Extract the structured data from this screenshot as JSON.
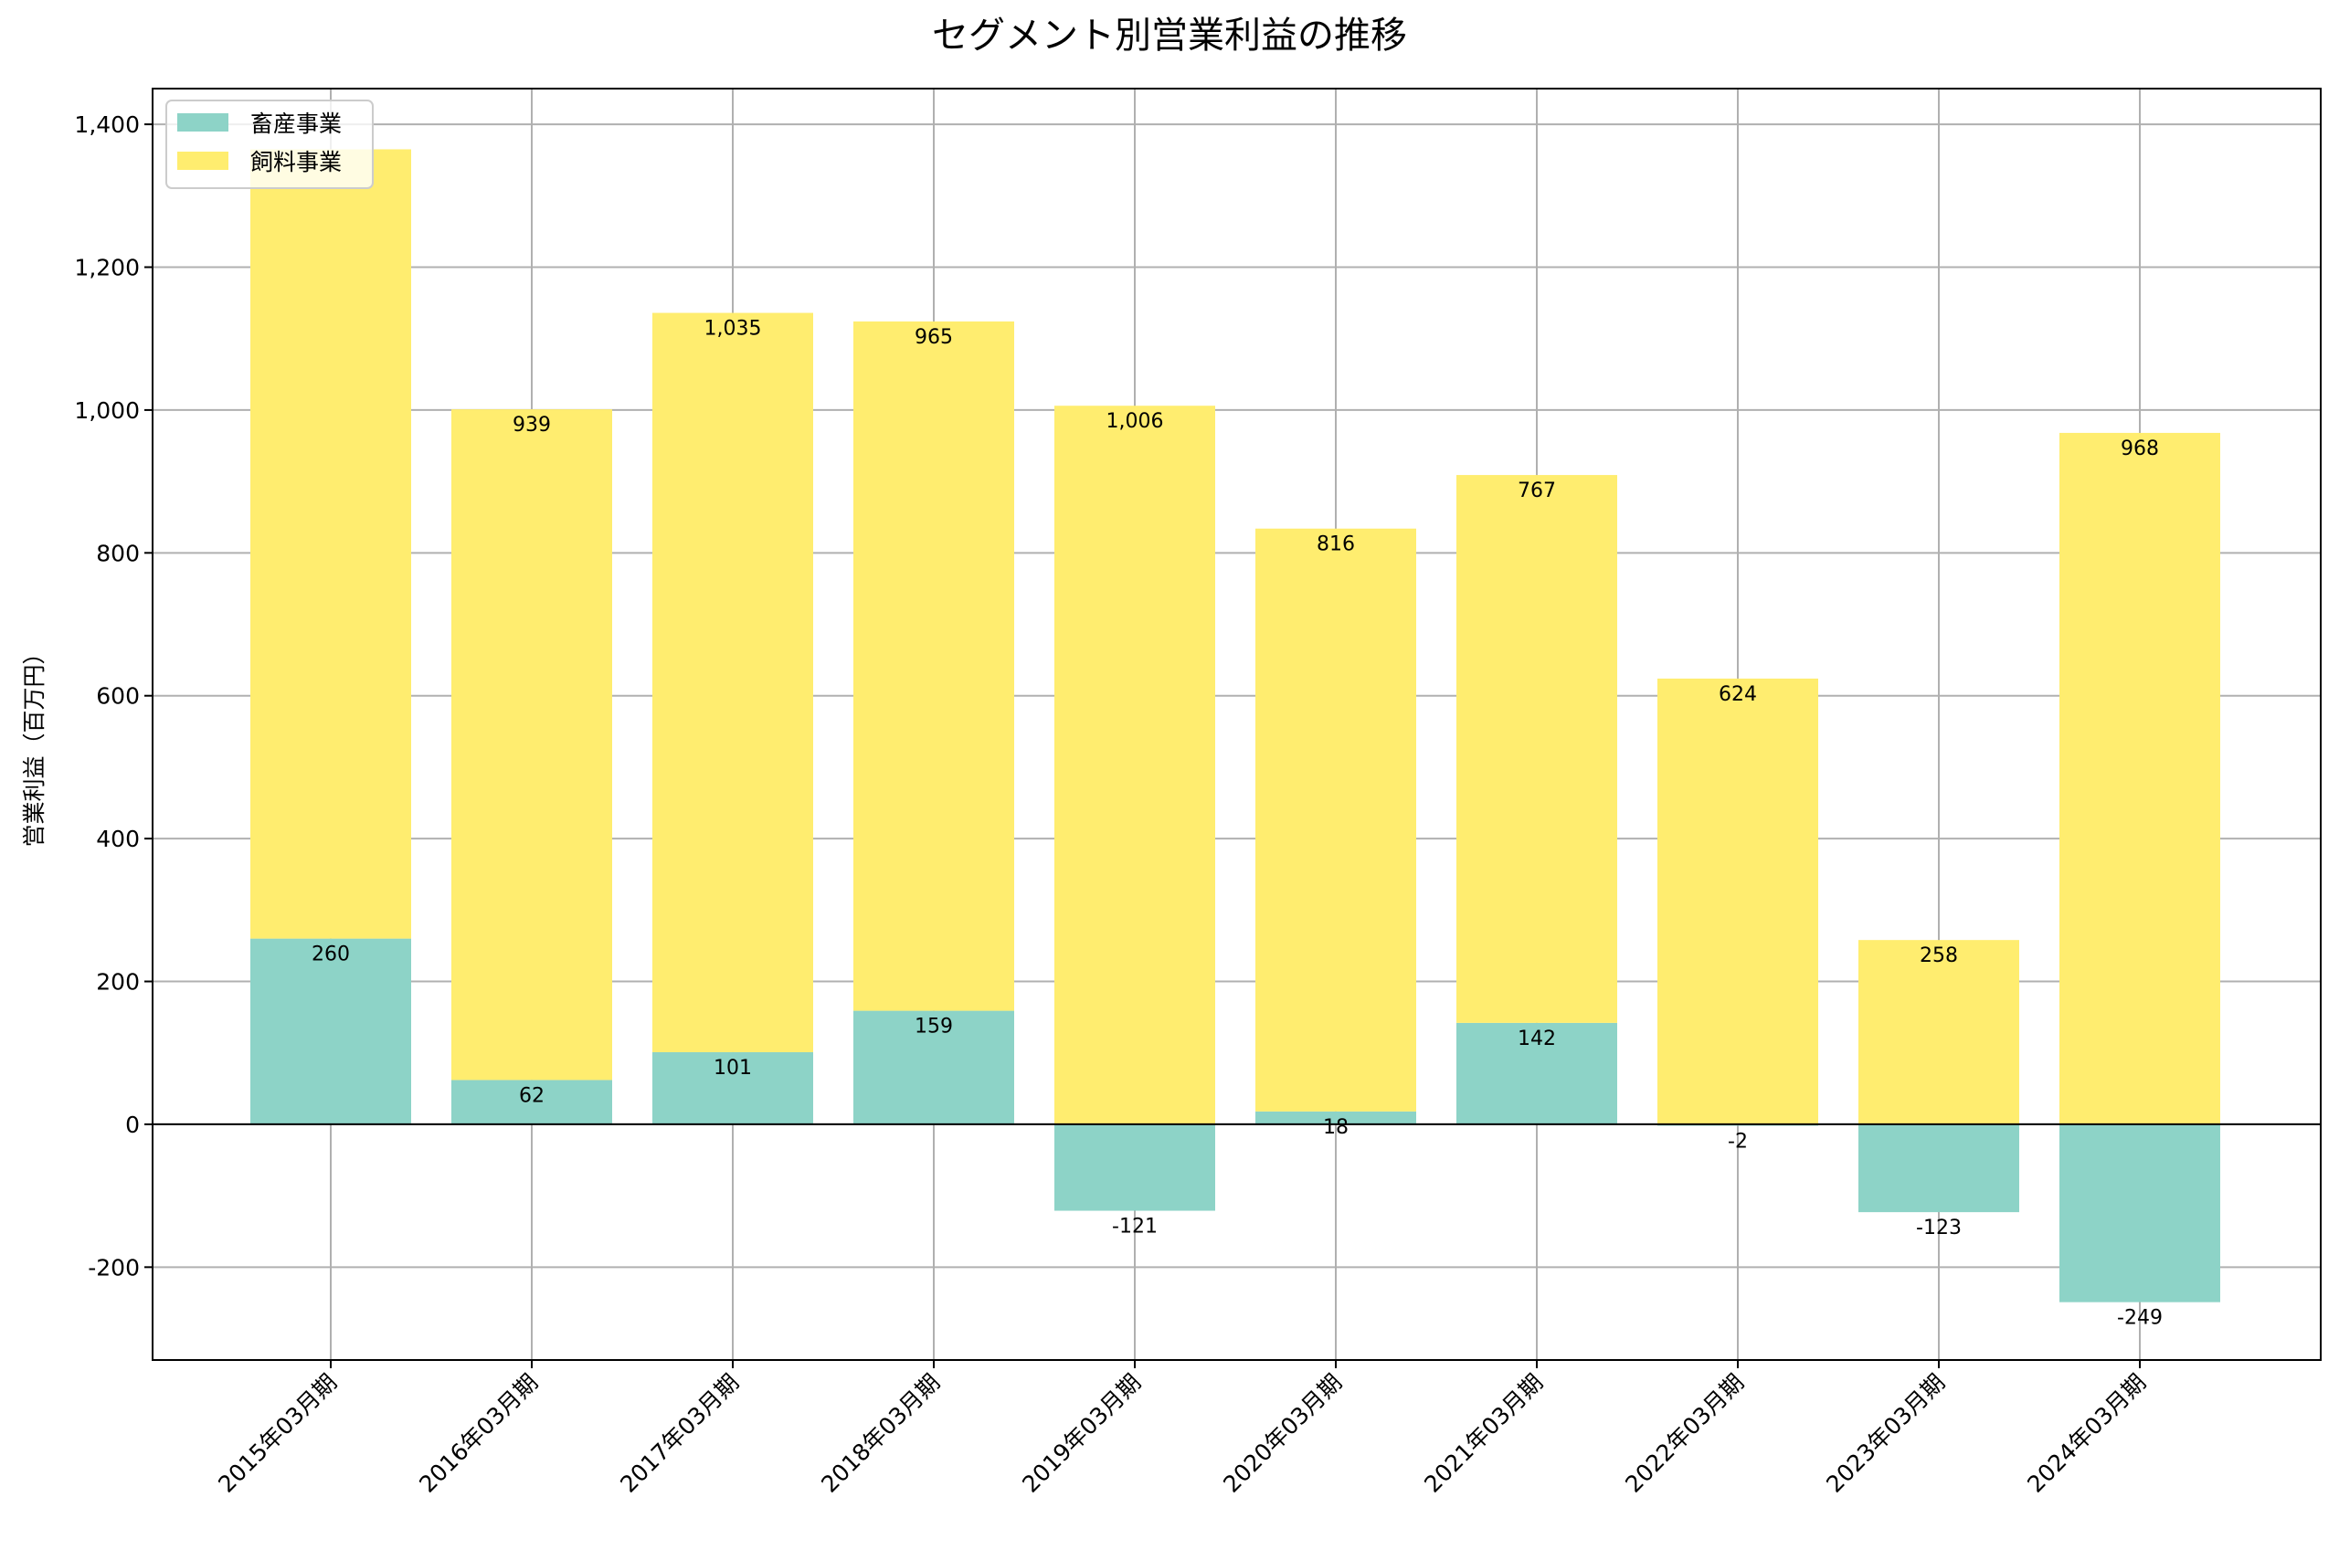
{
  "chart_data": {
    "type": "bar",
    "stacked": true,
    "title": "セグメント別営業利益の推移",
    "xlabel": "",
    "ylabel": "営業利益（百万円）",
    "ylim": [
      -330,
      1450
    ],
    "yticks": [
      -200,
      0,
      200,
      400,
      600,
      800,
      1000,
      1200,
      1400
    ],
    "ytick_labels": [
      "-200",
      "0",
      "200",
      "400",
      "600",
      "800",
      "1,000",
      "1,200",
      "1,400"
    ],
    "grid": true,
    "legend_position": "top-left",
    "categories": [
      "2015年03月期",
      "2016年03月期",
      "2017年03月期",
      "2018年03月期",
      "2019年03月期",
      "2020年03月期",
      "2021年03月期",
      "2022年03月期",
      "2023年03月期",
      "2024年03月期"
    ],
    "series": [
      {
        "name": "畜産事業",
        "color": "#8dd3c7",
        "values": [
          260,
          62,
          101,
          159,
          -121,
          18,
          142,
          -2,
          -123,
          -249
        ],
        "labels": [
          "260",
          "62",
          "101",
          "159",
          "-121",
          "18",
          "142",
          "-2",
          "-123",
          "-249"
        ]
      },
      {
        "name": "飼料事業",
        "color": "#ffed6f",
        "values": [
          1105,
          939,
          1035,
          965,
          1006,
          816,
          767,
          624,
          258,
          968
        ],
        "labels": [
          "",
          "939",
          "1,035",
          "965",
          "1,006",
          "816",
          "767",
          "624",
          "258",
          "968"
        ]
      }
    ]
  }
}
